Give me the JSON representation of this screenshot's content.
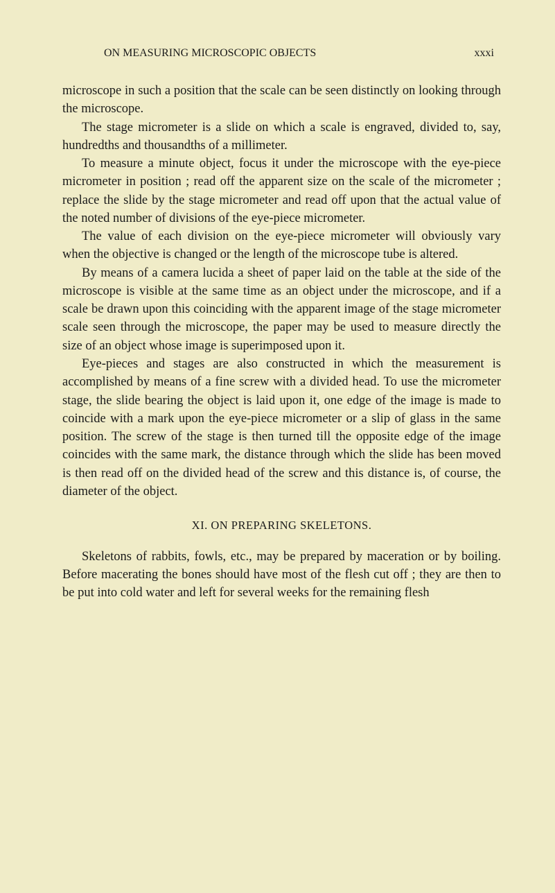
{
  "header": {
    "title": "ON MEASURING MICROSCOPIC OBJECTS",
    "page_number": "xxxi"
  },
  "paragraphs": {
    "p1": "microscope in such a position that the scale can be seen distinctly on looking through the microscope.",
    "p2": "The stage micrometer is a slide on which a scale is engraved, divided to, say, hundredths and thousandths of a millimeter.",
    "p3": "To measure a minute object, focus it under the microscope with the eye-piece micrometer in position ; read off the apparent size on the scale of the micrometer ; replace the slide by the stage micrometer and read off upon that the actual value of the noted number of divisions of the eye-piece micrometer.",
    "p4": "The value of each division on the eye-piece micrometer will obviously vary when the objective is changed or the length of the microscope tube is altered.",
    "p5": "By means of a camera lucida a sheet of paper laid on the table at the side of the microscope is visible at the same time as an object under the microscope, and if a scale be drawn upon this coinciding with the apparent image of the stage micrometer scale seen through the microscope, the paper may be used to measure directly the size of an object whose image is superimposed upon it.",
    "p6": "Eye-pieces and stages are also constructed in which the measurement is accomplished by means of a fine screw with a divided head. To use the micrometer stage, the slide bearing the object is laid upon it, one edge of the image is made to coincide with a mark upon the eye-piece micrometer or a slip of glass in the same position. The screw of the stage is then turned till the opposite edge of the image coincides with the same mark, the distance through which the slide has been moved is then read off on the divided head of the screw and this distance is, of course, the diameter of the object."
  },
  "section_heading": "XI. ON PREPARING SKELETONS.",
  "paragraphs2": {
    "p7": "Skeletons of rabbits, fowls, etc., may be prepared by maceration or by boiling. Before macerating the bones should have most of the flesh cut off ; they are then to be put into cold water and left for several weeks for the remaining flesh"
  },
  "colors": {
    "background": "#f0ecc8",
    "text": "#1a1a1a"
  },
  "typography": {
    "body_font_size": 18.5,
    "header_font_size": 16,
    "line_height": 1.42,
    "font_family": "Times New Roman"
  }
}
